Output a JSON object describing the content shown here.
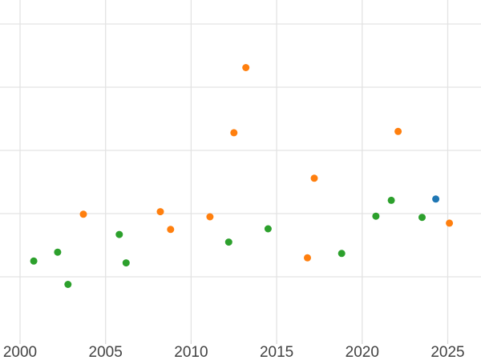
{
  "chart_data": {
    "type": "scatter",
    "title": "",
    "subtitle": "",
    "xlabel": "",
    "ylabel": "",
    "grid": true,
    "legend": "none",
    "x_axis": {
      "tick_labels": [
        "2000",
        "2005",
        "2010",
        "2015",
        "2020",
        "2025"
      ],
      "tick_values": [
        2000,
        2005,
        2010,
        2015,
        2020,
        2025
      ],
      "range": [
        1998.8,
        2026.9
      ]
    },
    "y_axis": {
      "tick_labels": [],
      "note": "no y-axis labels visible in image; y values are in gridline units above the invisible bottom axis (1 unit = 1 gridline spacing)",
      "gridline_values": [
        1,
        2,
        3,
        4,
        5
      ],
      "range": [
        0,
        5.38
      ]
    },
    "series": [
      {
        "name": "green-series",
        "color": "#2ca02c",
        "points": [
          {
            "x": 2000.8,
            "y": 1.25
          },
          {
            "x": 2002.2,
            "y": 1.39
          },
          {
            "x": 2002.8,
            "y": 0.88
          },
          {
            "x": 2005.8,
            "y": 1.67
          },
          {
            "x": 2006.2,
            "y": 1.22
          },
          {
            "x": 2012.2,
            "y": 1.55
          },
          {
            "x": 2014.5,
            "y": 1.76
          },
          {
            "x": 2018.8,
            "y": 1.37
          },
          {
            "x": 2020.8,
            "y": 1.96
          },
          {
            "x": 2021.7,
            "y": 2.21
          },
          {
            "x": 2023.5,
            "y": 1.94
          }
        ]
      },
      {
        "name": "orange-series",
        "color": "#ff7f0e",
        "points": [
          {
            "x": 2003.7,
            "y": 1.99
          },
          {
            "x": 2008.2,
            "y": 2.03
          },
          {
            "x": 2008.8,
            "y": 1.75
          },
          {
            "x": 2011.1,
            "y": 1.95
          },
          {
            "x": 2012.5,
            "y": 3.28
          },
          {
            "x": 2013.2,
            "y": 4.31
          },
          {
            "x": 2016.8,
            "y": 1.3
          },
          {
            "x": 2017.2,
            "y": 2.56
          },
          {
            "x": 2022.1,
            "y": 3.3
          },
          {
            "x": 2025.1,
            "y": 1.85
          }
        ]
      },
      {
        "name": "blue-series",
        "color": "#1f77b4",
        "points": [
          {
            "x": 2024.3,
            "y": 2.23
          }
        ]
      }
    ]
  },
  "style": {
    "background_color": "#ffffff",
    "gridline_color": "#e3e3e3",
    "tick_mark_color": "#dadada",
    "tick_label_color": "#424242",
    "point_colors": {
      "blue": "#1f77b4",
      "orange": "#ff7f0e",
      "green": "#2ca02c"
    }
  }
}
